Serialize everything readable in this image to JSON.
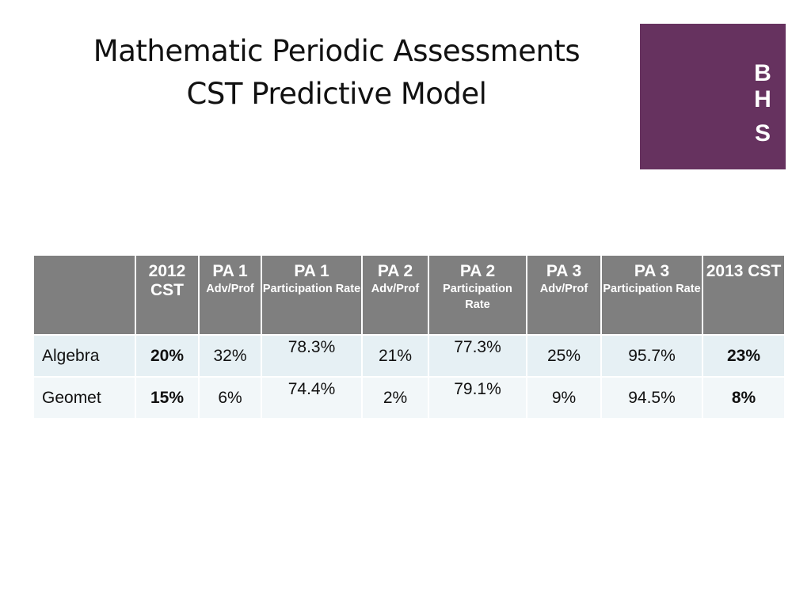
{
  "title": {
    "line1": "Mathematic Periodic Assessments",
    "line2": "CST Predictive Model"
  },
  "logo": {
    "letters": [
      "B",
      "H",
      "S"
    ],
    "color": "#66325f"
  },
  "table": {
    "header_color": "#7f7f7f",
    "columns": [
      {
        "main": "",
        "sub": ""
      },
      {
        "main": "2012 CST",
        "sub": ""
      },
      {
        "main": "PA 1",
        "sub": "Adv/Prof"
      },
      {
        "main": "PA 1",
        "sub": "Participation Rate"
      },
      {
        "main": "PA 2",
        "sub": "Adv/Prof"
      },
      {
        "main": "PA 2",
        "sub": "Participation Rate"
      },
      {
        "main": "PA 3",
        "sub": "Adv/Prof"
      },
      {
        "main": "PA 3",
        "sub": "Participation Rate"
      },
      {
        "main": "2013 CST",
        "sub": ""
      }
    ],
    "rows": [
      {
        "label": "Algebra",
        "cst_2012": "20%",
        "pa1_adv": "32%",
        "pa1_part": "78.3%",
        "pa2_adv": "21%",
        "pa2_part": "77.3%",
        "pa3_adv": "25%",
        "pa3_part": "95.7%",
        "cst_2013": "23%"
      },
      {
        "label": "Geomet",
        "cst_2012": "15%",
        "pa1_adv": "6%",
        "pa1_part": "74.4%",
        "pa2_adv": "2%",
        "pa2_part": "79.1%",
        "pa3_adv": "9%",
        "pa3_part": "94.5%",
        "cst_2013": "8%"
      }
    ]
  }
}
